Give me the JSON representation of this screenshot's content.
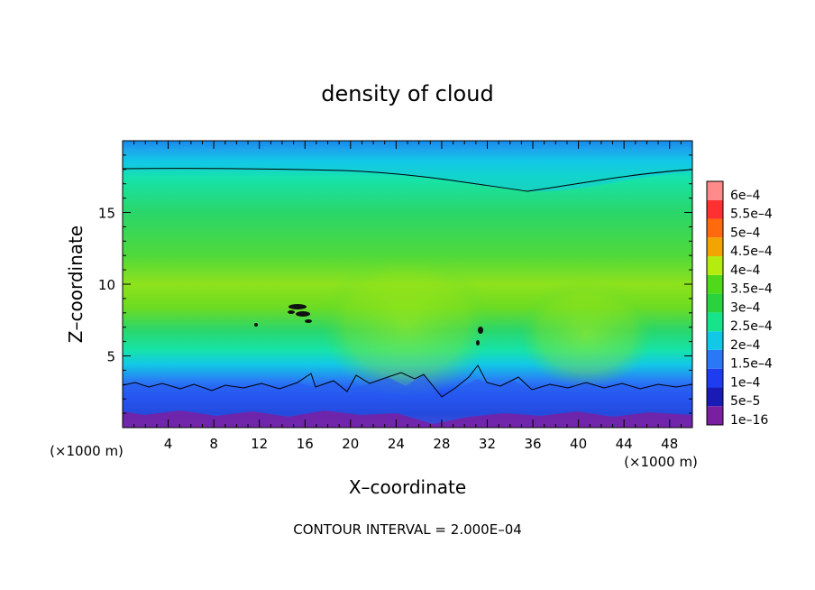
{
  "chart_data": {
    "type": "heatmap",
    "title": "density of cloud",
    "xlabel": "X–coordinate",
    "ylabel": "Z–coordinate",
    "x_unit": "(×1000 m)",
    "y_unit": "(×1000 m)",
    "xlim": [
      0,
      50
    ],
    "ylim": [
      0,
      20
    ],
    "x_ticks": [
      4,
      8,
      12,
      16,
      20,
      24,
      28,
      32,
      36,
      40,
      44,
      48
    ],
    "y_ticks": [
      5,
      10,
      15
    ],
    "footer": "CONTOUR INTERVAL = 2.000E–04",
    "colorbar": {
      "labels": [
        "1e–16",
        "5e–5",
        "1e–4",
        "1.5e–4",
        "2e–4",
        "2.5e–4",
        "3e–4",
        "3.5e–4",
        "4e–4",
        "4.5e–4",
        "5e–4",
        "5.5e–4",
        "6e–4"
      ],
      "colors": [
        "#7a1fa2",
        "#1a1ab4",
        "#1e3cf0",
        "#2a78f5",
        "#12c8e6",
        "#16e38a",
        "#2ad23e",
        "#4fd91a",
        "#b4ec10",
        "#f2a500",
        "#ff6a0f",
        "#ff3030",
        "#ff8a8a"
      ]
    }
  }
}
